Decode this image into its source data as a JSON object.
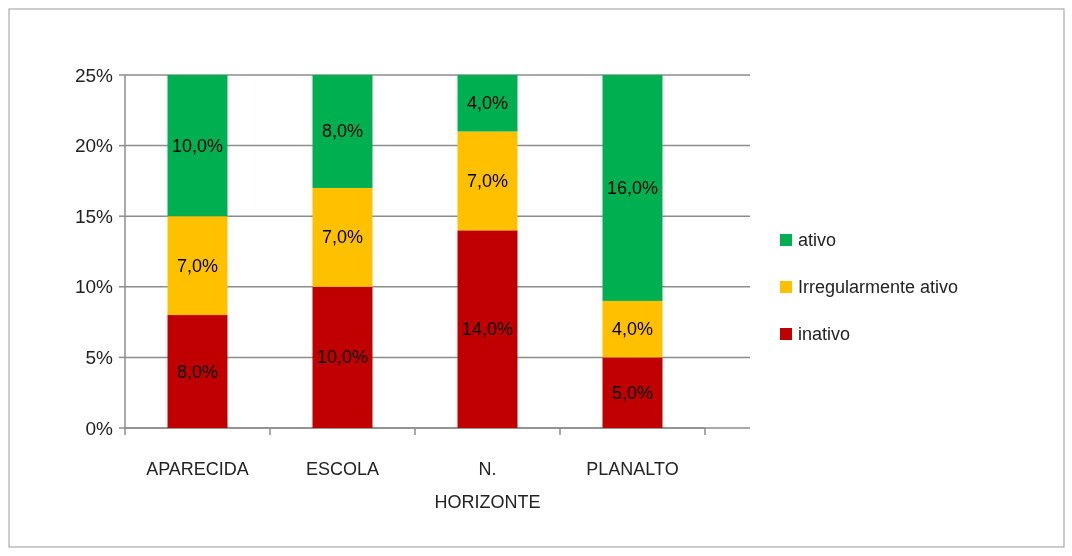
{
  "chart_data": {
    "type": "bar",
    "stacked": true,
    "categories": [
      "APARECIDA",
      "ESCOLA",
      "N. HORIZONTE",
      "PLANALTO"
    ],
    "series": [
      {
        "name": "inativo",
        "color": "#c00000",
        "values": [
          8,
          10,
          14,
          5
        ],
        "value_labels": [
          "8,0%",
          "10,0%",
          "14,0%",
          "5,0%"
        ]
      },
      {
        "name": "Irregularmente ativo",
        "color": "#ffc000",
        "values": [
          7,
          7,
          7,
          4
        ],
        "value_labels": [
          "7,0%",
          "7,0%",
          "7,0%",
          "4,0%"
        ]
      },
      {
        "name": "ativo",
        "color": "#00b050",
        "values": [
          10,
          8,
          4,
          16
        ],
        "value_labels": [
          "10,0%",
          "8,0%",
          "4,0%",
          "16,0%"
        ]
      }
    ],
    "ylim": [
      0,
      25
    ],
    "yticks": [
      {
        "value": 0,
        "label": "0%"
      },
      {
        "value": 5,
        "label": "5%"
      },
      {
        "value": 10,
        "label": "10%"
      },
      {
        "value": 15,
        "label": "15%"
      },
      {
        "value": 20,
        "label": "20%"
      },
      {
        "value": 25,
        "label": "25%"
      }
    ],
    "grid": "y",
    "legend": "right"
  }
}
